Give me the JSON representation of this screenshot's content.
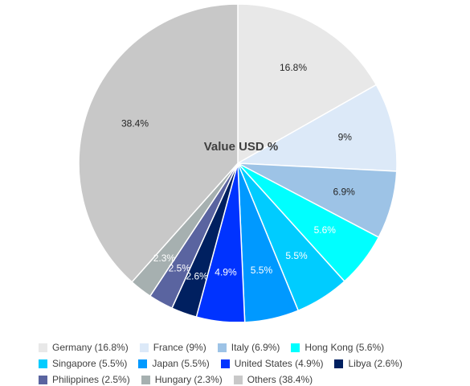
{
  "chart_data": {
    "type": "pie",
    "title": "Value USD %",
    "legend_position": "bottom",
    "slices": [
      {
        "name": "Germany",
        "value": 16.8,
        "label": "16.8%",
        "legend": "Germany (16.8%)",
        "color": "#e8e8e8",
        "label_color": "#262626"
      },
      {
        "name": "France",
        "value": 9,
        "label": "9%",
        "legend": "France (9%)",
        "color": "#dce9f8",
        "label_color": "#262626"
      },
      {
        "name": "Italy",
        "value": 6.9,
        "label": "6.9%",
        "legend": "Italy (6.9%)",
        "color": "#9dc3e6",
        "label_color": "#262626"
      },
      {
        "name": "Hong Kong",
        "value": 5.6,
        "label": "5.6%",
        "legend": "Hong Kong (5.6%)",
        "color": "#00ffff",
        "label_color": "#ffffff"
      },
      {
        "name": "Singapore",
        "value": 5.5,
        "label": "5.5%",
        "legend": "Singapore (5.5%)",
        "color": "#00ccff",
        "label_color": "#ffffff"
      },
      {
        "name": "Japan",
        "value": 5.5,
        "label": "5.5%",
        "legend": "Japan (5.5%)",
        "color": "#0099ff",
        "label_color": "#ffffff"
      },
      {
        "name": "United States",
        "value": 4.9,
        "label": "4.9%",
        "legend": "United States (4.9%)",
        "color": "#0033ff",
        "label_color": "#ffffff"
      },
      {
        "name": "Libya",
        "value": 2.6,
        "label": "2.6%",
        "legend": "Libya (2.6%)",
        "color": "#002060",
        "label_color": "#ffffff"
      },
      {
        "name": "Philippines",
        "value": 2.5,
        "label": "2.5%",
        "legend": "Philippines (2.5%)",
        "color": "#5a64a0",
        "label_color": "#ffffff"
      },
      {
        "name": "Hungary",
        "value": 2.3,
        "label": "2.3%",
        "legend": "Hungary (2.3%)",
        "color": "#a6b0b0",
        "label_color": "#ffffff"
      },
      {
        "name": "Others",
        "value": 38.4,
        "label": "38.4%",
        "legend": "Others (38.4%)",
        "color": "#c8c8c8",
        "label_color": "#262626"
      }
    ]
  }
}
